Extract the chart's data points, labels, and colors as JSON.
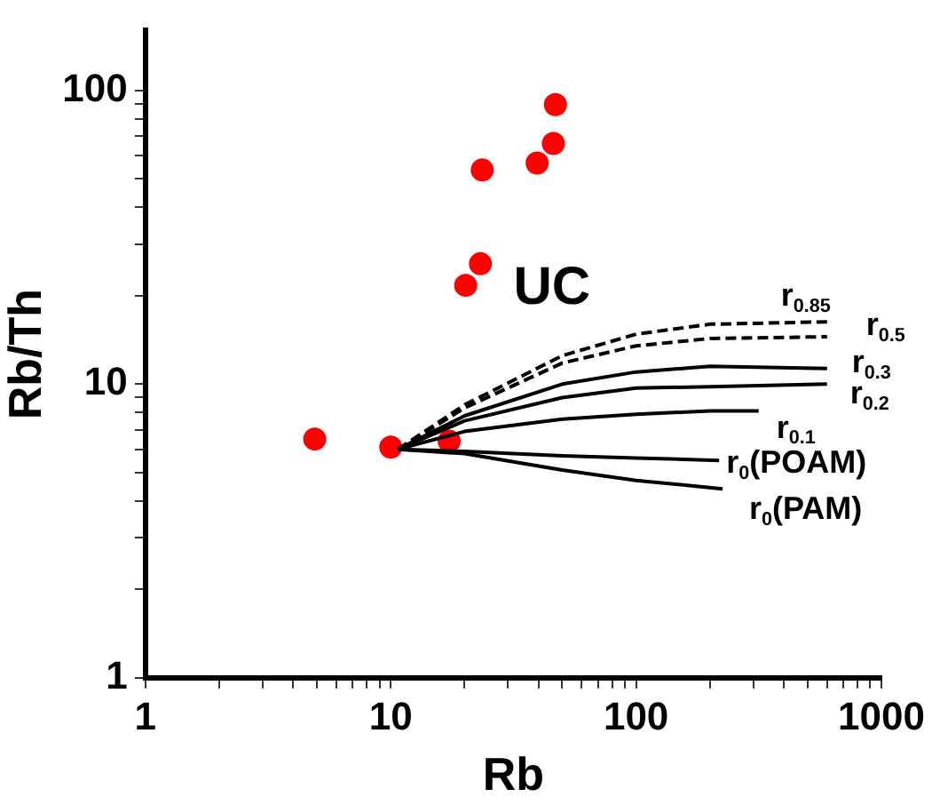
{
  "chart_data": {
    "type": "scatter",
    "xlabel": "Rb",
    "ylabel": "Rb/Th",
    "log": "xy",
    "xlim": [
      1,
      1000
    ],
    "ylim": [
      1,
      160
    ],
    "xticks": [
      1,
      {
        "value": 2,
        "label": null
      },
      {
        "value": 3,
        "label": null
      },
      {
        "value": 4,
        "label": null
      },
      {
        "value": 5,
        "label": null
      },
      {
        "value": 6,
        "label": null
      },
      {
        "value": 7,
        "label": null
      },
      {
        "value": 8,
        "label": null
      },
      {
        "value": 9,
        "label": null
      },
      10,
      {
        "value": 20,
        "label": null
      },
      {
        "value": 30,
        "label": null
      },
      {
        "value": 40,
        "label": null
      },
      {
        "value": 50,
        "label": null
      },
      {
        "value": 60,
        "label": null
      },
      {
        "value": 70,
        "label": null
      },
      {
        "value": 80,
        "label": null
      },
      {
        "value": 90,
        "label": null
      },
      100,
      {
        "value": 200,
        "label": null
      },
      {
        "value": 300,
        "label": null
      },
      {
        "value": 400,
        "label": null
      },
      {
        "value": 500,
        "label": null
      },
      {
        "value": 600,
        "label": null
      },
      {
        "value": 700,
        "label": null
      },
      {
        "value": 800,
        "label": null
      },
      {
        "value": 900,
        "label": null
      },
      1000
    ],
    "yticks": [
      1,
      {
        "value": 2,
        "label": null
      },
      {
        "value": 3,
        "label": null
      },
      {
        "value": 4,
        "label": null
      },
      {
        "value": 5,
        "label": null
      },
      {
        "value": 6,
        "label": null
      },
      {
        "value": 7,
        "label": null
      },
      {
        "value": 8,
        "label": null
      },
      {
        "value": 9,
        "label": null
      },
      10,
      {
        "value": 20,
        "label": null
      },
      {
        "value": 30,
        "label": null
      },
      {
        "value": 40,
        "label": null
      },
      {
        "value": 50,
        "label": null
      },
      {
        "value": 60,
        "label": null
      },
      {
        "value": 70,
        "label": null
      },
      {
        "value": 80,
        "label": null
      },
      {
        "value": 90,
        "label": null
      },
      100
    ],
    "marker": "circle",
    "annotations": [
      "UC"
    ],
    "series": [
      {
        "type": "line",
        "name": "r$_{0.85}$",
        "color": "#000000",
        "line_style": "dashed",
        "marker": "none",
        "x": [
          10.7,
          20,
          50,
          100,
          200,
          600
        ],
        "values": [
          6,
          8.5,
          12.5,
          14.8,
          16,
          16.3
        ]
      },
      {
        "type": "line",
        "name": "r$_{0.5}$",
        "color": "#000000",
        "line_style": "dashed",
        "marker": "none",
        "x": [
          10.7,
          20,
          50,
          100,
          200,
          600
        ],
        "values": [
          6,
          8.3,
          11.8,
          13.5,
          14.3,
          14.5
        ]
      },
      {
        "type": "line",
        "name": "r$_{0.3}$",
        "color": "#000000",
        "line_style": "solid",
        "marker": "none",
        "x": [
          10.7,
          20,
          50,
          100,
          200,
          600
        ],
        "values": [
          6,
          7.8,
          10,
          11,
          11.5,
          11.3
        ]
      },
      {
        "type": "line",
        "name": "r$_{0.2}$",
        "color": "#000000",
        "line_style": "solid",
        "marker": "none",
        "x": [
          10.7,
          20,
          50,
          100,
          200,
          600
        ],
        "values": [
          6,
          7.5,
          9,
          9.7,
          9.8,
          10
        ]
      },
      {
        "type": "line",
        "name": "r$_{0.1}$",
        "color": "#000000",
        "line_style": "solid",
        "marker": "none",
        "x": [
          10.7,
          20,
          50,
          100,
          200,
          316
        ],
        "values": [
          6,
          6.9,
          7.6,
          7.9,
          8.1,
          8.1
        ]
      },
      {
        "type": "line",
        "name": "r$_{0}$(POAM)",
        "color": "#000000",
        "line_style": "solid",
        "marker": "none",
        "x": [
          10.7,
          20,
          50,
          100,
          218
        ],
        "values": [
          6,
          5.9,
          5.7,
          5.6,
          5.5
        ]
      },
      {
        "type": "line",
        "name": "r$_{0}$(PAM)",
        "color": "#000000",
        "line_style": "solid",
        "marker": "none",
        "x": [
          10.7,
          20,
          50,
          100,
          225
        ],
        "values": [
          6,
          5.8,
          5.1,
          4.7,
          4.4
        ]
      },
      {
        "color": "#ff0000",
        "x": [
          4.9,
          10,
          17.3,
          20.2,
          23.2,
          23.6,
          39.5,
          46,
          46.9
        ],
        "values": [
          6.5,
          6.1,
          6.4,
          21.7,
          25.7,
          53.6,
          56.6,
          66,
          89.5
        ]
      }
    ]
  }
}
